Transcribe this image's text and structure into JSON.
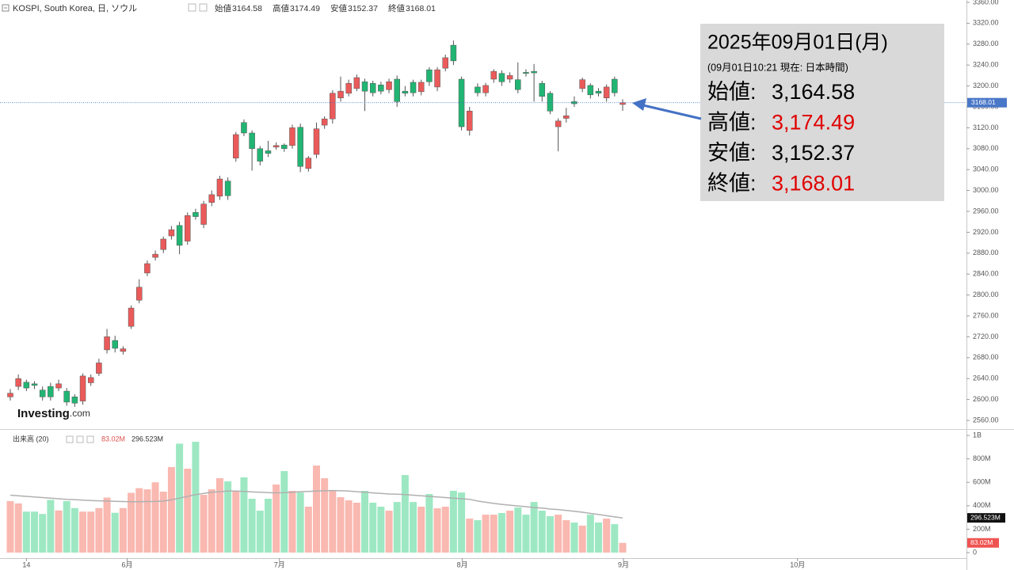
{
  "chart_data": [
    {
      "type": "candlestick",
      "title": "KOSPI, South Korea, 日, ソウル",
      "legend": [
        {
          "label": "始値",
          "value": 3164.58
        },
        {
          "label": "高値",
          "value": 3174.49
        },
        {
          "label": "安値",
          "value": 3152.37
        },
        {
          "label": "終値",
          "value": 3168.01
        }
      ],
      "up_color": "#eb5a5a",
      "down_color": "#21b573",
      "open": [
        2605,
        2625,
        2633,
        2630,
        2618,
        2625,
        2622,
        2616,
        2605,
        2597,
        2632,
        2650,
        2695,
        2713,
        2692,
        2740,
        2790,
        2842,
        2872,
        2887,
        2913,
        2933,
        2903,
        2958,
        2935,
        2977,
        2989,
        3018,
        3062,
        3130,
        3110,
        3080,
        3076,
        3083,
        3087,
        3086,
        3121,
        3042,
        3069,
        3125,
        3137,
        3177,
        3186,
        3195,
        3208,
        3205,
        3202,
        3193,
        3213,
        3190,
        3207,
        3189,
        3231,
        3198,
        3234,
        3278,
        3213,
        3115,
        3198,
        3187,
        3213,
        3224,
        3213,
        3212,
        3226,
        3228,
        3205,
        3186,
        3122,
        3138,
        3170,
        3195,
        3201,
        3190,
        3177,
        3213,
        3164.58
      ],
      "high": [
        2620,
        2648,
        2638,
        2635,
        2625,
        2632,
        2638,
        2622,
        2610,
        2650,
        2648,
        2678,
        2735,
        2722,
        2702,
        2780,
        2830,
        2866,
        2885,
        2912,
        2932,
        2940,
        2958,
        2965,
        2980,
        3000,
        3028,
        3025,
        3112,
        3136,
        3115,
        3085,
        3095,
        3092,
        3090,
        3126,
        3128,
        3066,
        3130,
        3142,
        3192,
        3218,
        3212,
        3222,
        3214,
        3210,
        3208,
        3214,
        3220,
        3200,
        3212,
        3212,
        3236,
        3236,
        3260,
        3287,
        3218,
        3160,
        3205,
        3206,
        3232,
        3230,
        3226,
        3245,
        3232,
        3242,
        3210,
        3190,
        3138,
        3158,
        3180,
        3216,
        3205,
        3196,
        3203,
        3218,
        3174.49
      ],
      "low": [
        2598,
        2618,
        2616,
        2620,
        2598,
        2598,
        2616,
        2588,
        2586,
        2590,
        2626,
        2645,
        2688,
        2690,
        2686,
        2735,
        2784,
        2836,
        2866,
        2880,
        2906,
        2878,
        2896,
        2944,
        2928,
        2970,
        2982,
        2982,
        3055,
        3104,
        3038,
        3048,
        3064,
        3078,
        3074,
        3080,
        3035,
        3036,
        3062,
        3118,
        3128,
        3170,
        3180,
        3190,
        3152,
        3180,
        3184,
        3186,
        3160,
        3180,
        3180,
        3182,
        3200,
        3190,
        3228,
        3240,
        3115,
        3105,
        3180,
        3180,
        3206,
        3200,
        3206,
        3186,
        3218,
        3170,
        3170,
        3146,
        3075,
        3130,
        3160,
        3188,
        3176,
        3180,
        3170,
        3180,
        3152.37
      ],
      "close": [
        2612,
        2640,
        2622,
        2627,
        2605,
        2605,
        2630,
        2595,
        2593,
        2645,
        2642,
        2670,
        2720,
        2698,
        2697,
        2775,
        2815,
        2860,
        2878,
        2907,
        2925,
        2895,
        2952,
        2950,
        2974,
        2992,
        3022,
        2990,
        3107,
        3110,
        3080,
        3056,
        3071,
        3086,
        3080,
        3120,
        3046,
        3062,
        3118,
        3137,
        3186,
        3190,
        3205,
        3216,
        3190,
        3187,
        3190,
        3208,
        3170,
        3186,
        3187,
        3207,
        3208,
        3231,
        3254,
        3248,
        3122,
        3152,
        3187,
        3201,
        3228,
        3208,
        3220,
        3193,
        3224,
        3225,
        3180,
        3152,
        3133,
        3143,
        3166,
        3212,
        3183,
        3186,
        3198,
        3187,
        3168.01
      ],
      "last": 3168.01,
      "last_color": "#4a78c8",
      "ylim": [
        2546.4,
        3364.5
      ],
      "yticks": [
        {
          "value": 3360,
          "label": "3360.00"
        },
        {
          "value": 3320,
          "label": "3320.00"
        },
        {
          "value": 3280,
          "label": "3280.00"
        },
        {
          "value": 3240,
          "label": "3240.00"
        },
        {
          "value": 3200,
          "label": "3200.00"
        },
        {
          "value": 3160,
          "label": "3160.00"
        },
        {
          "value": 3120,
          "label": "3120.00"
        },
        {
          "value": 3080,
          "label": "3080.00"
        },
        {
          "value": 3040,
          "label": "3040.00"
        },
        {
          "value": 3000,
          "label": "3000.00"
        },
        {
          "value": 2960,
          "label": "2960.00"
        },
        {
          "value": 2920,
          "label": "2920.00"
        },
        {
          "value": 2880,
          "label": "2880.00"
        },
        {
          "value": 2840,
          "label": "2840.00"
        },
        {
          "value": 2800,
          "label": "2800.00"
        },
        {
          "value": 2760,
          "label": "2760.00"
        },
        {
          "value": 2720,
          "label": "2720.00"
        },
        {
          "value": 2680,
          "label": "2680.00"
        },
        {
          "value": 2640,
          "label": "2640.00"
        },
        {
          "value": 2600,
          "label": "2600.00"
        },
        {
          "value": 2560,
          "label": "2560.00"
        }
      ],
      "xlim": [
        -1.278,
        118.67
      ],
      "xticks": [
        {
          "value": 2,
          "label": "14"
        },
        {
          "value": 14.5,
          "label": "6月"
        },
        {
          "value": 33.4,
          "label": "7月"
        },
        {
          "value": 56.1,
          "label": "8月"
        },
        {
          "value": 76.1,
          "label": "9月"
        },
        {
          "value": 97.7,
          "label": "10月"
        }
      ],
      "grid": false,
      "watermark": [
        "Investing",
        ".com"
      ],
      "info_box": {
        "date": "2025年09月01日(月)",
        "note": "(09月01日10:21 現在: 日本時間)",
        "rows": [
          {
            "label": "始値:",
            "value": 3164.58,
            "value_label": "3,164.58",
            "color": "#000000"
          },
          {
            "label": "高値:",
            "value": 3174.49,
            "value_label": "3,174.49",
            "color": "#e00000"
          },
          {
            "label": "安値:",
            "value": 3152.37,
            "value_label": "3,152.37",
            "color": "#000000"
          },
          {
            "label": "終値:",
            "value": 3168.01,
            "value_label": "3,168.01",
            "color": "#e00000"
          }
        ]
      }
    },
    {
      "type": "volume",
      "title": "出来高 (20)",
      "up_color": "#f9b8b0",
      "down_color": "#9de8c3",
      "values": [
        440,
        420,
        350,
        350,
        330,
        450,
        360,
        440,
        380,
        350,
        350,
        380,
        470,
        340,
        380,
        510,
        550,
        540,
        600,
        520,
        730,
        930,
        716,
        946,
        493,
        540,
        635,
        608,
        527,
        642,
        460,
        358,
        460,
        581,
        696,
        527,
        513,
        392,
        743,
        635,
        527,
        473,
        446,
        426,
        527,
        426,
        392,
        358,
        432,
        662,
        432,
        392,
        500,
        378,
        392,
        527,
        513,
        290,
        277,
        324,
        324,
        338,
        358,
        385,
        324,
        432,
        358,
        311,
        324,
        277,
        257,
        230,
        324,
        257,
        290,
        243,
        83.02
      ],
      "last_label": "83.02M",
      "ma": {
        "color": "#b0b0b0",
        "last_label": "296.523M",
        "values": [
          490,
          485,
          480,
          475,
          470,
          465,
          460,
          455,
          452,
          448,
          445,
          442,
          440,
          438,
          436,
          435,
          435,
          436,
          437,
          440,
          450,
          465,
          480,
          495,
          505,
          515,
          520,
          525,
          525,
          522,
          518,
          515,
          512,
          510,
          512,
          515,
          520,
          522,
          525,
          528,
          530,
          528,
          525,
          520,
          515,
          510,
          505,
          500,
          498,
          495,
          490,
          485,
          480,
          475,
          470,
          465,
          460,
          455,
          440,
          430,
          420,
          412,
          405,
          398,
          392,
          385,
          380,
          372,
          368,
          360,
          352,
          345,
          335,
          325,
          315,
          305,
          296.523
        ]
      },
      "ylim": [
        -47,
        1034
      ],
      "yticks": [
        {
          "value": 1000,
          "label": "1B"
        },
        {
          "value": 800,
          "label": "800M"
        },
        {
          "value": 600,
          "label": "600M"
        },
        {
          "value": 400,
          "label": "400M"
        },
        {
          "value": 200,
          "label": "200M"
        },
        0
      ]
    }
  ]
}
